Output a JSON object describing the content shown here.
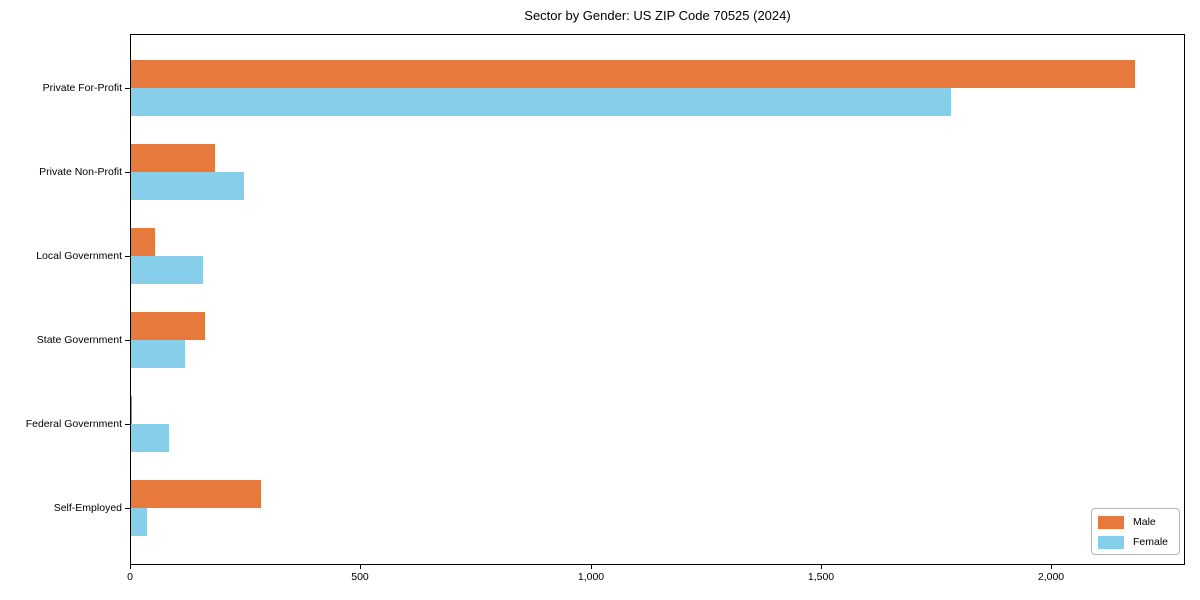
{
  "chart_data": {
    "type": "bar",
    "orientation": "horizontal",
    "title": "Sector by Gender: US ZIP Code 70525 (2024)",
    "categories": [
      "Private For-Profit",
      "Private Non-Profit",
      "Local Government",
      "State Government",
      "Federal Government",
      "Self-Employed"
    ],
    "series": [
      {
        "name": "Male",
        "color": "#E8793D",
        "values": [
          2180,
          182,
          52,
          160,
          2,
          282
        ]
      },
      {
        "name": "Female",
        "color": "#87CEEB",
        "values": [
          1780,
          245,
          157,
          117,
          82,
          35
        ]
      }
    ],
    "xlim": [
      0,
      2290
    ],
    "xticks": {
      "values": [
        0,
        500,
        1000,
        1500,
        2000
      ],
      "labels": [
        "0",
        "500",
        "1,000",
        "1,500",
        "2,000"
      ]
    },
    "xlabel": "",
    "ylabel": "",
    "grid": false,
    "legend": {
      "position": "lower right",
      "entries": [
        "Male",
        "Female"
      ]
    }
  }
}
